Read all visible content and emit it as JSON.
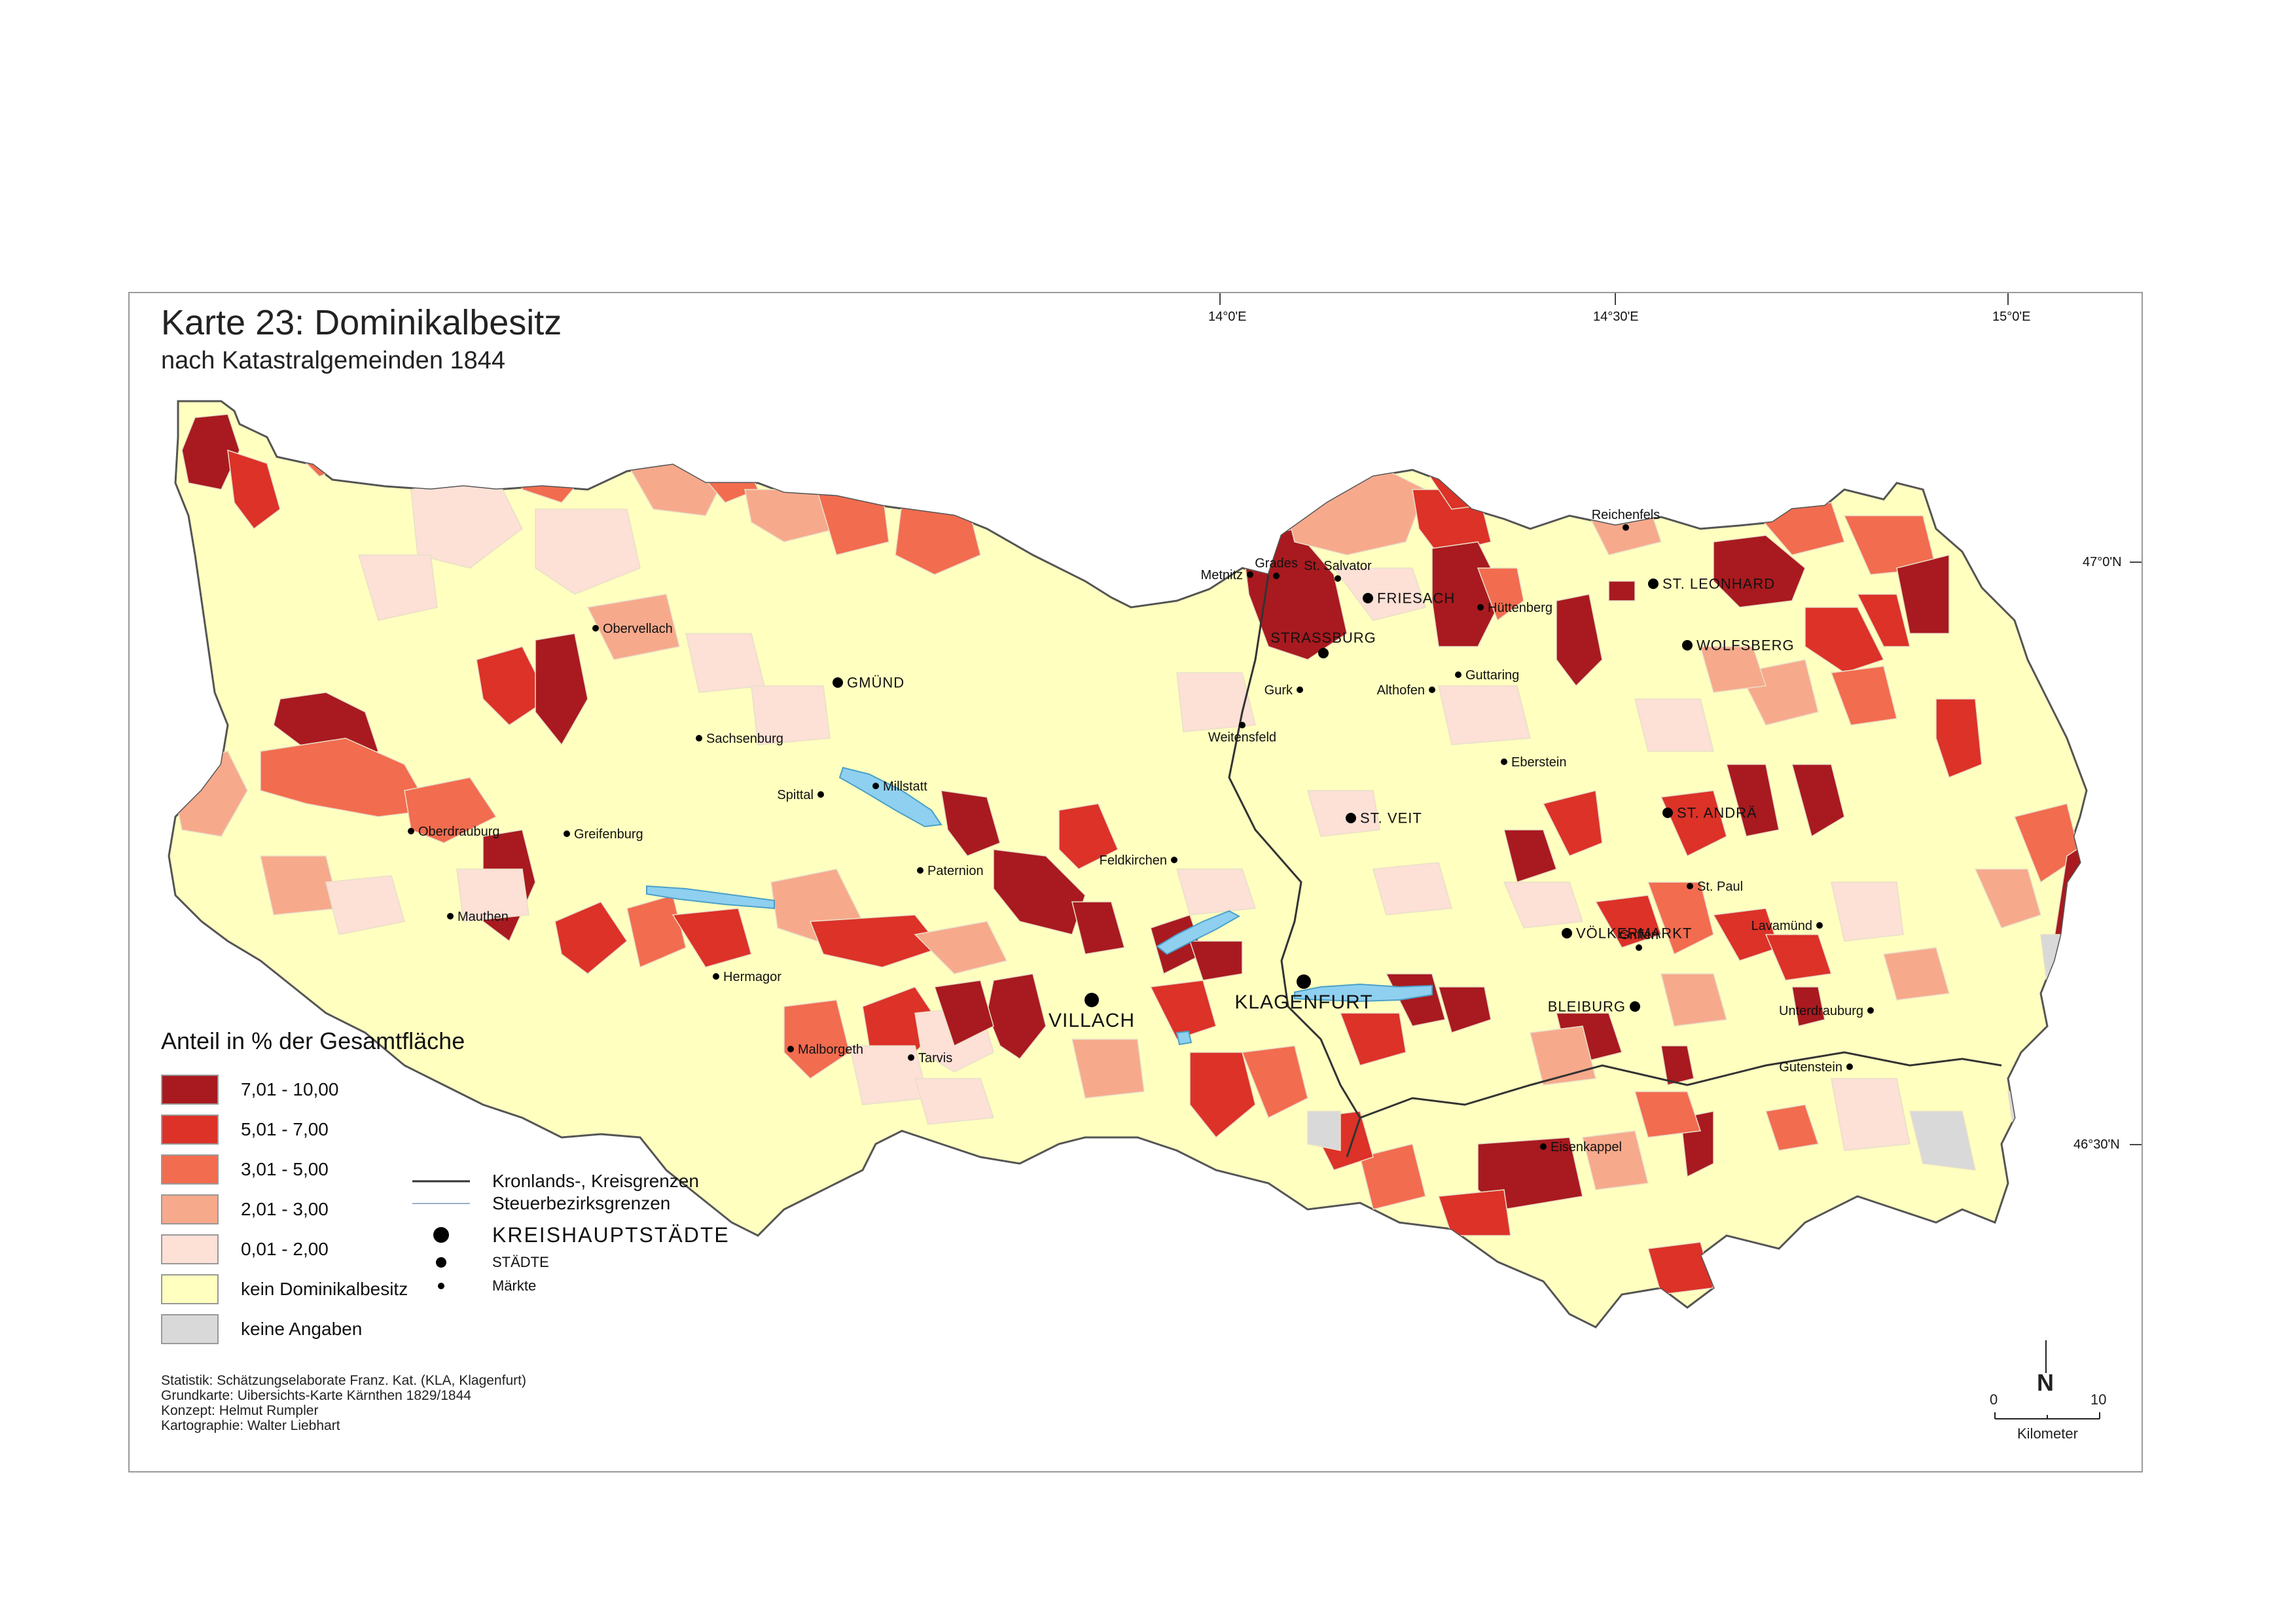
{
  "title": "Karte 23: Dominikalbesitz",
  "subtitle": "nach Katastralgemeinden 1844",
  "graticule": {
    "lon_labels": [
      "14°0'E",
      "14°30'E",
      "15°0'E"
    ],
    "lat_labels": [
      "47°0'N",
      "46°30'N"
    ]
  },
  "legend": {
    "title": "Anteil in % der Gesamtfläche",
    "classes": [
      {
        "label": "7,01 - 10,00",
        "color": "#a81a1f"
      },
      {
        "label": "5,01 - 7,00",
        "color": "#dc3228"
      },
      {
        "label": "3,01 - 5,00",
        "color": "#f26c4f"
      },
      {
        "label": "2,01 - 3,00",
        "color": "#f7a98c"
      },
      {
        "label": "0,01 - 2,00",
        "color": "#fde0d6"
      },
      {
        "label": "kein Dominikalbesitz",
        "color": "#ffffc0"
      },
      {
        "label": "keine Angaben",
        "color": "#d9d9d9"
      }
    ],
    "lines": [
      {
        "label": "Kronlands-, Kreisgrenzen"
      },
      {
        "label": "Steuerbezirksgrenzen"
      }
    ],
    "symbols": [
      {
        "label": "KREISHAUPTSTÄDTE"
      },
      {
        "label": "STÄDTE"
      },
      {
        "label": "Märkte"
      }
    ]
  },
  "places": [
    {
      "name": "Obervellach",
      "kind": "markt"
    },
    {
      "name": "GMÜND",
      "kind": "stadt"
    },
    {
      "name": "Sachsenburg",
      "kind": "markt"
    },
    {
      "name": "Millstatt",
      "kind": "markt"
    },
    {
      "name": "Spittal",
      "kind": "markt"
    },
    {
      "name": "Oberdrauburg",
      "kind": "markt"
    },
    {
      "name": "Greifenburg",
      "kind": "markt"
    },
    {
      "name": "Mauthen",
      "kind": "markt"
    },
    {
      "name": "Paternion",
      "kind": "markt"
    },
    {
      "name": "Hermagor",
      "kind": "markt"
    },
    {
      "name": "VILLACH",
      "kind": "kreis"
    },
    {
      "name": "Malborgeth",
      "kind": "markt"
    },
    {
      "name": "Tarvis",
      "kind": "markt"
    },
    {
      "name": "Metnitz",
      "kind": "markt"
    },
    {
      "name": "Grades",
      "kind": "markt"
    },
    {
      "name": "St. Salvator",
      "kind": "markt"
    },
    {
      "name": "FRIESACH",
      "kind": "stadt"
    },
    {
      "name": "Hüttenberg",
      "kind": "markt"
    },
    {
      "name": "STRASSBURG",
      "kind": "stadt"
    },
    {
      "name": "Gurk",
      "kind": "markt"
    },
    {
      "name": "Althofen",
      "kind": "markt"
    },
    {
      "name": "Guttaring",
      "kind": "markt"
    },
    {
      "name": "Weitensfeld",
      "kind": "markt"
    },
    {
      "name": "Eberstein",
      "kind": "markt"
    },
    {
      "name": "ST. VEIT",
      "kind": "stadt"
    },
    {
      "name": "Feldkirchen",
      "kind": "markt"
    },
    {
      "name": "KLAGENFURT",
      "kind": "kreis"
    },
    {
      "name": "VÖLKERMARKT",
      "kind": "stadt"
    },
    {
      "name": "Griffen",
      "kind": "markt"
    },
    {
      "name": "BLEIBURG",
      "kind": "stadt"
    },
    {
      "name": "Eisenkappel",
      "kind": "markt"
    },
    {
      "name": "Reichenfels",
      "kind": "markt"
    },
    {
      "name": "ST. LEONHARD",
      "kind": "stadt"
    },
    {
      "name": "WOLFSBERG",
      "kind": "stadt"
    },
    {
      "name": "ST. ANDRÄ",
      "kind": "stadt"
    },
    {
      "name": "St. Paul",
      "kind": "markt"
    },
    {
      "name": "Lavamünd",
      "kind": "markt"
    },
    {
      "name": "Unterdrauburg",
      "kind": "markt"
    },
    {
      "name": "Gutenstein",
      "kind": "markt"
    }
  ],
  "credits": [
    "Statistik: Schätzungselaborate Franz. Kat. (KLA, Klagenfurt)",
    "Grundkarte: Uibersichts-Karte Kärnthen 1829/1844",
    "Konzept: Helmut Rumpler",
    "Kartographie: Walter Liebhart"
  ],
  "scale": {
    "min": "0",
    "max": "10",
    "unit": "Kilometer",
    "north": "N"
  },
  "colors": {
    "lake": "#8fd0f0",
    "border": "#555555",
    "bezirk": "#9ab0c8"
  }
}
